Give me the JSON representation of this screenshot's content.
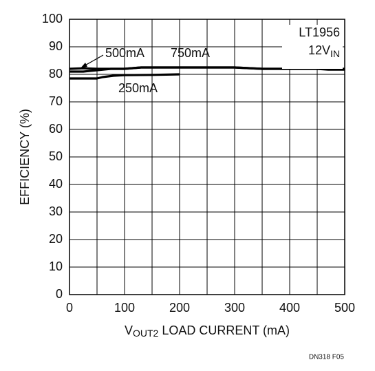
{
  "chart_data": {
    "type": "line",
    "xlabel": {
      "text": "V",
      "subscript": "OUT2",
      "rest": " LOAD CURRENT (mA)"
    },
    "ylabel": "EFFICIENCY (%)",
    "device": "LT1956",
    "input": {
      "text": "12V",
      "subscript": "IN"
    },
    "footnote": "DN318 F05",
    "xlim": [
      0,
      500
    ],
    "ylim": [
      0,
      100
    ],
    "xticks": [
      0,
      100,
      200,
      300,
      400,
      500
    ],
    "xminor": [
      50,
      150,
      250,
      350,
      450
    ],
    "yticks": [
      0,
      10,
      20,
      30,
      40,
      50,
      60,
      70,
      80,
      90,
      100
    ],
    "grid": true,
    "series": [
      {
        "name": "500mA",
        "color": "#000000",
        "x": [
          0,
          25,
          50,
          75,
          100,
          130,
          200,
          300,
          350,
          450,
          500
        ],
        "values": [
          81,
          81,
          81.5,
          82,
          82,
          82.5,
          82.5,
          82.5,
          82,
          82,
          82
        ]
      },
      {
        "name": "750mA",
        "color": "#000000",
        "x": [
          0,
          25,
          50,
          100,
          130,
          300,
          350,
          450,
          470,
          500
        ],
        "values": [
          82,
          82.2,
          82,
          82,
          82.5,
          82.5,
          82,
          82,
          81.7,
          81.7
        ]
      },
      {
        "name": "250mA",
        "color": "#000000",
        "x": [
          0,
          50,
          60,
          80,
          100,
          150,
          200
        ],
        "values": [
          78.5,
          78.5,
          79,
          79.5,
          79.7,
          79.8,
          80
        ]
      }
    ]
  }
}
